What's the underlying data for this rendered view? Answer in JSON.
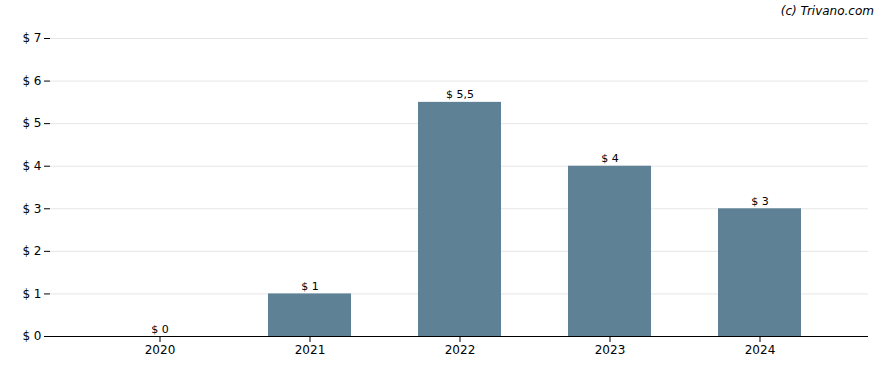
{
  "chart_data": {
    "type": "bar",
    "annotations": [
      "(c) Trivano.com"
    ],
    "categories": [
      "2020",
      "2021",
      "2022",
      "2023",
      "2024"
    ],
    "values": [
      0,
      1,
      5.5,
      4,
      3
    ],
    "value_labels": [
      "$ 0",
      "$ 1",
      "$ 5,5",
      "$ 4",
      "$ 3"
    ],
    "data_labels": true,
    "color": "#5f8196",
    "ylim": [
      0,
      7
    ],
    "yticks": [
      {
        "value": 0,
        "label": "$ 0"
      },
      {
        "value": 1,
        "label": "$ 1"
      },
      {
        "value": 2,
        "label": "$ 2"
      },
      {
        "value": 3,
        "label": "$ 3"
      },
      {
        "value": 4,
        "label": "$ 4"
      },
      {
        "value": 5,
        "label": "$ 5"
      },
      {
        "value": 6,
        "label": "$ 6"
      },
      {
        "value": 7,
        "label": "$ 7"
      }
    ],
    "grid": true
  }
}
